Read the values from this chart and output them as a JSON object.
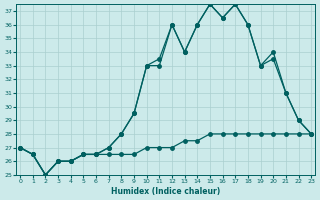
{
  "title": "",
  "xlabel": "Humidex (Indice chaleur)",
  "ylabel": "",
  "x": [
    0,
    1,
    2,
    3,
    4,
    5,
    6,
    7,
    8,
    9,
    10,
    11,
    12,
    13,
    14,
    15,
    16,
    17,
    18,
    19,
    20,
    21,
    22,
    23
  ],
  "line1": [
    27,
    26.5,
    25,
    26,
    26,
    26.5,
    26.5,
    26.5,
    26.5,
    26.5,
    27,
    27,
    27,
    27.5,
    27.5,
    28,
    28,
    28,
    28,
    28,
    28,
    28,
    28,
    28
  ],
  "line2": [
    27,
    26.5,
    25,
    26,
    26,
    26.5,
    26.5,
    27,
    28,
    29.5,
    33,
    33,
    36,
    34,
    36,
    37.5,
    36.5,
    37.5,
    36,
    33,
    34,
    31,
    29,
    28
  ],
  "line3": [
    27,
    26.5,
    25,
    26,
    26,
    26.5,
    26.5,
    27,
    28,
    29.5,
    33,
    33.5,
    36,
    34,
    36,
    37.5,
    36.5,
    37.5,
    36,
    33,
    33.5,
    31,
    29,
    28
  ],
  "line_color": "#006060",
  "bg_color": "#cceaea",
  "grid_color": "#aacfcf",
  "ylim": [
    25,
    37.5
  ],
  "yticks": [
    25,
    26,
    27,
    28,
    29,
    30,
    31,
    32,
    33,
    34,
    35,
    36,
    37
  ],
  "xlim": [
    0,
    23
  ],
  "xticks": [
    0,
    1,
    2,
    3,
    4,
    5,
    6,
    7,
    8,
    9,
    10,
    11,
    12,
    13,
    14,
    15,
    16,
    17,
    18,
    19,
    20,
    21,
    22,
    23
  ]
}
